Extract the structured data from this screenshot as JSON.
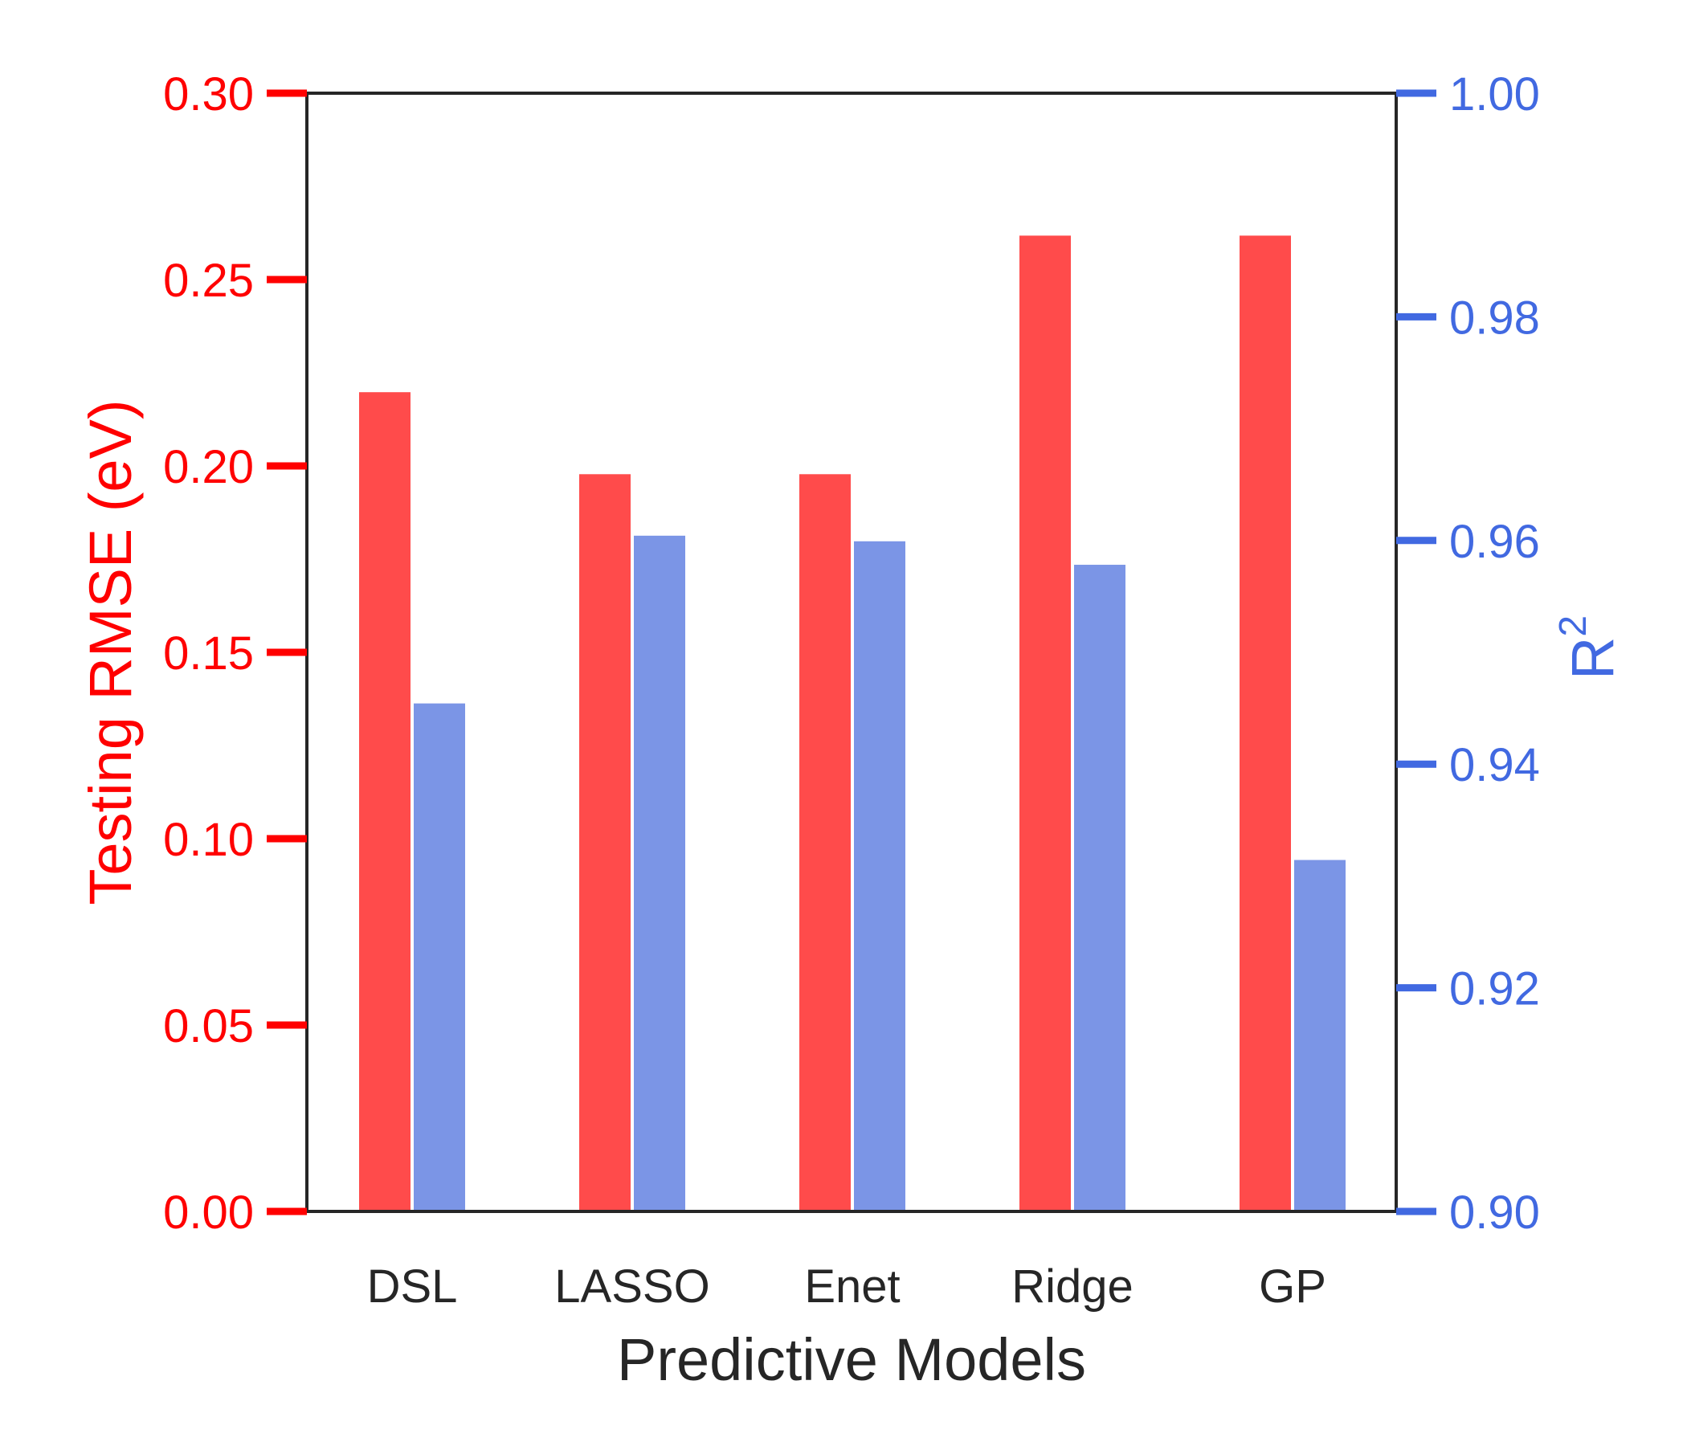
{
  "chart_data": {
    "type": "bar",
    "xlabel": "Predictive Models",
    "categories": [
      "DSL",
      "LASSO",
      "Enet",
      "Ridge",
      "GP"
    ],
    "left_axis": {
      "label": "Testing RMSE (eV)",
      "ylim": [
        0.0,
        0.3
      ],
      "ticks": [
        "0.00",
        "0.05",
        "0.10",
        "0.15",
        "0.20",
        "0.25",
        "0.30"
      ],
      "color": "#ff0000"
    },
    "right_axis": {
      "label": "R",
      "label_superscript": "2",
      "ylim": [
        0.9,
        1.0
      ],
      "ticks": [
        "0.90",
        "0.92",
        "0.94",
        "0.96",
        "0.98",
        "1.00"
      ],
      "color": "#4169e1"
    },
    "series": [
      {
        "axis": "left",
        "color": "#ff4b4b",
        "values": [
          0.22,
          0.198,
          0.198,
          0.262,
          0.262
        ]
      },
      {
        "axis": "right",
        "color": "#7b95e6",
        "values": [
          0.9455,
          0.9605,
          0.96,
          0.9579,
          0.9315
        ]
      }
    ],
    "grid": false,
    "legend": "none"
  }
}
